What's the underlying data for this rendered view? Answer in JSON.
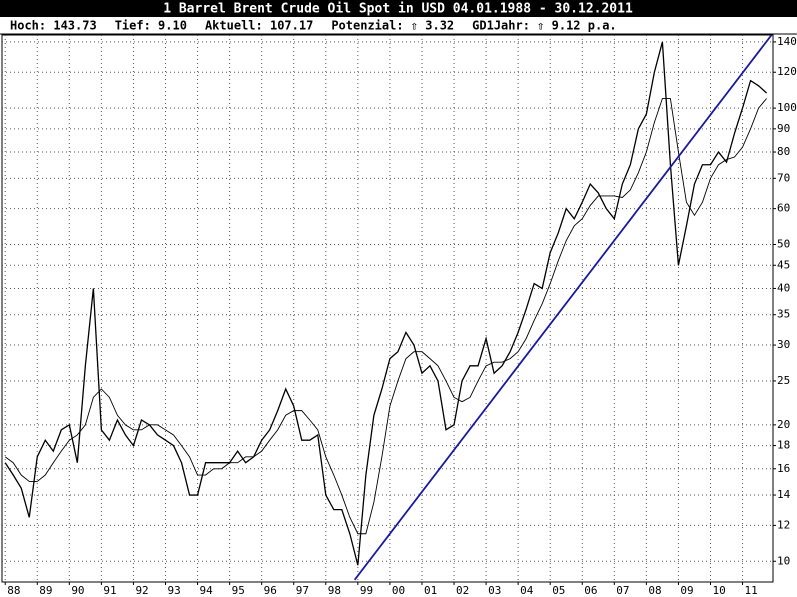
{
  "chart_data": {
    "type": "line",
    "title": "1 Barrel Brent Crude Oil Spot in USD 04.01.1988 - 30.12.2011",
    "stats": [
      "Hoch: 143.73",
      "Tief: 9.10",
      "Aktuell: 107.17",
      "Potenzial: ⇧ 3.32",
      "GD1Jahr: ⇧ 9.12 p.a."
    ],
    "log_y": true,
    "grid": true,
    "x": [
      1988,
      1988.25,
      1988.5,
      1988.75,
      1989,
      1989.25,
      1989.5,
      1989.75,
      1990,
      1990.25,
      1990.5,
      1990.75,
      1991,
      1991.25,
      1991.5,
      1991.75,
      1992,
      1992.25,
      1992.5,
      1992.75,
      1993,
      1993.25,
      1993.5,
      1993.75,
      1994,
      1994.25,
      1994.5,
      1994.75,
      1995,
      1995.25,
      1995.5,
      1995.75,
      1996,
      1996.25,
      1996.5,
      1996.75,
      1997,
      1997.25,
      1997.5,
      1997.75,
      1998,
      1998.25,
      1998.5,
      1998.75,
      1999,
      1999.25,
      1999.5,
      1999.75,
      2000,
      2000.25,
      2000.5,
      2000.75,
      2001,
      2001.25,
      2001.5,
      2001.75,
      2002,
      2002.25,
      2002.5,
      2002.75,
      2003,
      2003.25,
      2003.5,
      2003.75,
      2004,
      2004.25,
      2004.5,
      2004.75,
      2005,
      2005.25,
      2005.5,
      2005.75,
      2006,
      2006.25,
      2006.5,
      2006.75,
      2007,
      2007.25,
      2007.5,
      2007.75,
      2008,
      2008.25,
      2008.5,
      2008.75,
      2009,
      2009.25,
      2009.5,
      2009.75,
      2010,
      2010.25,
      2010.5,
      2010.75,
      2011,
      2011.25,
      2011.5,
      2011.75
    ],
    "series": [
      {
        "color": "#000000",
        "width": 1.3,
        "values": [
          16.5,
          15.5,
          14.5,
          12.5,
          17,
          18.5,
          17.5,
          19.5,
          20,
          16.5,
          27,
          40,
          19.5,
          18.5,
          20.5,
          19,
          18,
          20.5,
          20,
          19,
          18.5,
          18,
          16.5,
          14,
          14,
          16.5,
          16.5,
          16.5,
          16.5,
          17.5,
          16.5,
          17,
          18.5,
          19.5,
          21.5,
          24,
          22,
          18.5,
          18.5,
          19,
          14,
          13,
          13,
          11.5,
          9.8,
          15.5,
          21,
          24,
          28,
          29,
          32,
          30,
          26,
          27,
          25,
          19.5,
          20,
          25,
          27,
          27,
          31,
          26,
          27,
          29,
          32,
          36,
          41,
          40,
          48,
          53,
          60,
          57,
          62,
          68,
          65,
          60,
          57,
          68,
          75,
          90,
          97,
          120,
          140,
          75,
          45,
          55,
          68,
          75,
          75,
          80,
          76,
          88,
          100,
          115,
          112,
          108
        ]
      },
      {
        "color": "#000000",
        "width": 0.9,
        "values": [
          17,
          16.5,
          15.5,
          15,
          15,
          15.5,
          16.5,
          17.5,
          18.5,
          19,
          20,
          23,
          24,
          23,
          21,
          20,
          19.5,
          19.5,
          20,
          20,
          19.5,
          19,
          18,
          17,
          15.5,
          15.5,
          16,
          16,
          16.5,
          16.5,
          17,
          17,
          17.5,
          18.5,
          19.5,
          21,
          21.5,
          21.5,
          20.5,
          19.5,
          17,
          15.5,
          14,
          12.5,
          11.5,
          11.5,
          13.5,
          17,
          22,
          25,
          28,
          29,
          29,
          28,
          27,
          25,
          23,
          22.5,
          23,
          25,
          27,
          27.5,
          27.5,
          28,
          29,
          31,
          34,
          37,
          41,
          46,
          51,
          55,
          57,
          61,
          64,
          64,
          64,
          63.5,
          66,
          72,
          80,
          93,
          105,
          105,
          80,
          62,
          58,
          62,
          70,
          75,
          77,
          78,
          82,
          90,
          100,
          105
        ]
      }
    ],
    "trend": {
      "color": "#1a1aa0",
      "x": [
        1998.9,
        2012
      ],
      "values": [
        9.1,
        148
      ]
    },
    "xlim": [
      1987.9,
      2011.95
    ],
    "xticks": [
      {
        "value": 1988,
        "label": "88"
      },
      {
        "value": 1989,
        "label": "89"
      },
      {
        "value": 1990,
        "label": "90"
      },
      {
        "value": 1991,
        "label": "91"
      },
      {
        "value": 1992,
        "label": "92"
      },
      {
        "value": 1993,
        "label": "93"
      },
      {
        "value": 1994,
        "label": "94"
      },
      {
        "value": 1995,
        "label": "95"
      },
      {
        "value": 1996,
        "label": "96"
      },
      {
        "value": 1997,
        "label": "97"
      },
      {
        "value": 1998,
        "label": "98"
      },
      {
        "value": 1999,
        "label": "99"
      },
      {
        "value": 2000,
        "label": "00"
      },
      {
        "value": 2001,
        "label": "01"
      },
      {
        "value": 2002,
        "label": "02"
      },
      {
        "value": 2003,
        "label": "03"
      },
      {
        "value": 2004,
        "label": "04"
      },
      {
        "value": 2005,
        "label": "05"
      },
      {
        "value": 2006,
        "label": "06"
      },
      {
        "value": 2007,
        "label": "07"
      },
      {
        "value": 2008,
        "label": "08"
      },
      {
        "value": 2009,
        "label": "09"
      },
      {
        "value": 2010,
        "label": "10"
      },
      {
        "value": 2011,
        "label": "11"
      }
    ],
    "ylim": [
      9,
      145
    ],
    "yticks": [
      10,
      12,
      14,
      16,
      18,
      20,
      25,
      30,
      35,
      40,
      45,
      50,
      60,
      70,
      80,
      90,
      100,
      120,
      140
    ]
  }
}
